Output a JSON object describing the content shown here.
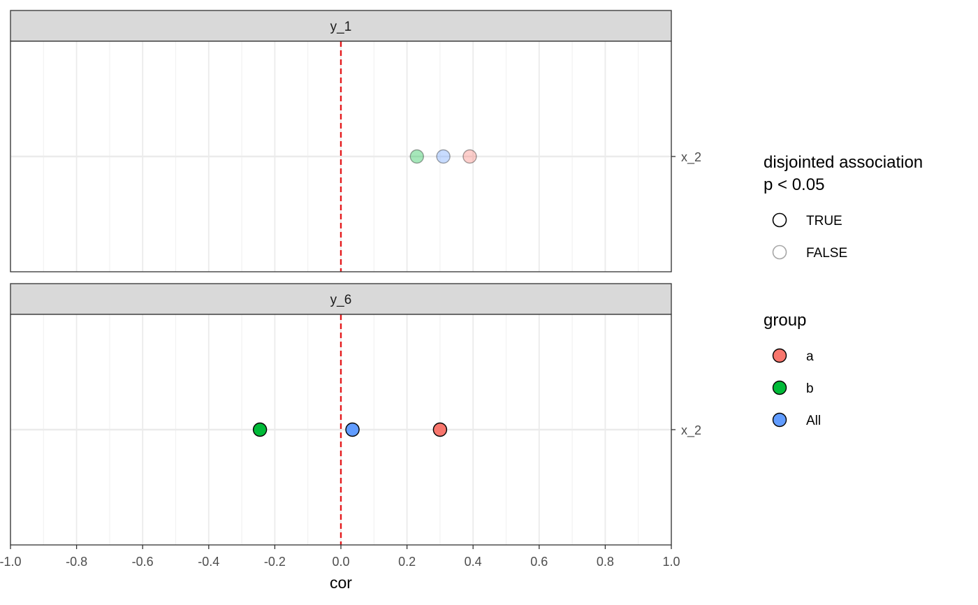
{
  "chart_data": {
    "type": "scatter",
    "xlabel": "cor",
    "xlim": [
      -1.0,
      1.0
    ],
    "x_ticks": [
      -1.0,
      -0.8,
      -0.6,
      -0.4,
      -0.2,
      0.0,
      0.2,
      0.4,
      0.6,
      0.8,
      1.0
    ],
    "x_tick_labels": [
      "-1.0",
      "-0.8",
      "-0.6",
      "-0.4",
      "-0.2",
      "0.0",
      "0.2",
      "0.4",
      "0.6",
      "0.8",
      "1.0"
    ],
    "reference_line": {
      "x": 0.0,
      "color": "#e41a1c",
      "style": "dashed"
    },
    "grid": true,
    "panels": [
      {
        "strip": "y_1",
        "y_categories": [
          "x_2"
        ],
        "points": [
          {
            "group": "b",
            "x": 0.23,
            "y": "x_2",
            "significant": "FALSE"
          },
          {
            "group": "All",
            "x": 0.31,
            "y": "x_2",
            "significant": "FALSE"
          },
          {
            "group": "a",
            "x": 0.39,
            "y": "x_2",
            "significant": "FALSE"
          }
        ]
      },
      {
        "strip": "y_6",
        "y_categories": [
          "x_2"
        ],
        "points": [
          {
            "group": "b",
            "x": -0.245,
            "y": "x_2",
            "significant": "TRUE"
          },
          {
            "group": "All",
            "x": 0.035,
            "y": "x_2",
            "significant": "TRUE"
          },
          {
            "group": "a",
            "x": 0.3,
            "y": "x_2",
            "significant": "TRUE"
          }
        ]
      }
    ],
    "legends": [
      {
        "title_lines": [
          "disjointed association",
          "p < 0.05"
        ],
        "items": [
          {
            "label": "TRUE",
            "stroke": "#000000"
          },
          {
            "label": "FALSE",
            "stroke": "#a6a6a6"
          }
        ]
      },
      {
        "title_lines": [
          "group"
        ],
        "items": [
          {
            "label": "a",
            "color": "#f8766d"
          },
          {
            "label": "b",
            "color": "#00ba38"
          },
          {
            "label": "All",
            "color": "#619cff"
          }
        ]
      }
    ],
    "legend_position": "right",
    "colors": {
      "a": "#f8766d",
      "b": "#00ba38",
      "All": "#619cff"
    }
  }
}
